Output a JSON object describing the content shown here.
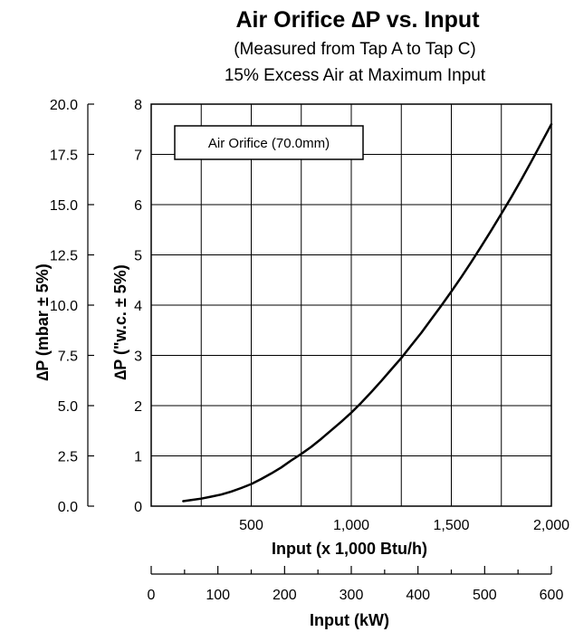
{
  "chart_data": {
    "type": "line",
    "title": "Air Orifice ∆P vs. Input",
    "subtitle_lines": [
      "(Measured from Tap A to Tap C)",
      "15% Excess Air at Maximum Input"
    ],
    "legend_box": "Air Orifice (70.0mm)",
    "series": [
      {
        "name": "Air Orifice (70.0mm)",
        "x": [
          160,
          200,
          250,
          300,
          350,
          400,
          450,
          500,
          550,
          600,
          650,
          700,
          750,
          800,
          850,
          900,
          950,
          1000,
          1050,
          1100,
          1150,
          1200,
          1250,
          1300,
          1350,
          1400,
          1450,
          1500,
          1550,
          1600,
          1650,
          1700,
          1750,
          1800,
          1850,
          1900,
          1950,
          2000
        ],
        "y": [
          0.1,
          0.12,
          0.15,
          0.19,
          0.23,
          0.29,
          0.36,
          0.44,
          0.54,
          0.65,
          0.77,
          0.91,
          1.04,
          1.18,
          1.34,
          1.51,
          1.68,
          1.86,
          2.06,
          2.27,
          2.49,
          2.72,
          2.95,
          3.2,
          3.45,
          3.72,
          3.99,
          4.27,
          4.56,
          4.86,
          5.17,
          5.49,
          5.82,
          6.15,
          6.5,
          6.86,
          7.23,
          7.6
        ]
      }
    ],
    "primary_y": {
      "label": "∆P (\"w.c.  ± 5%)",
      "min": 0,
      "max": 8,
      "ticks": [
        "0",
        "1",
        "2",
        "3",
        "4",
        "5",
        "6",
        "7",
        "8"
      ]
    },
    "secondary_y": {
      "label": "∆P (mbar ± 5%)",
      "min": 0,
      "max": 20,
      "ticks": [
        "0.0",
        "2.5",
        "5.0",
        "7.5",
        "10.0",
        "12.5",
        "15.0",
        "17.5",
        "20.0"
      ]
    },
    "primary_x": {
      "label": "Input (x 1,000 Btu/h)",
      "min": 0,
      "max": 2000,
      "tick_values": [
        500,
        1000,
        1500,
        2000
      ],
      "ticks": [
        "500",
        "1,000",
        "1,500",
        "2,000"
      ]
    },
    "secondary_x": {
      "label": "Input (kW)",
      "min": 0,
      "max": 600,
      "tick_values": [
        0,
        100,
        200,
        300,
        400,
        500,
        600
      ],
      "ticks": [
        "0",
        "100",
        "200",
        "300",
        "400",
        "500",
        "600"
      ]
    },
    "grid": true
  }
}
